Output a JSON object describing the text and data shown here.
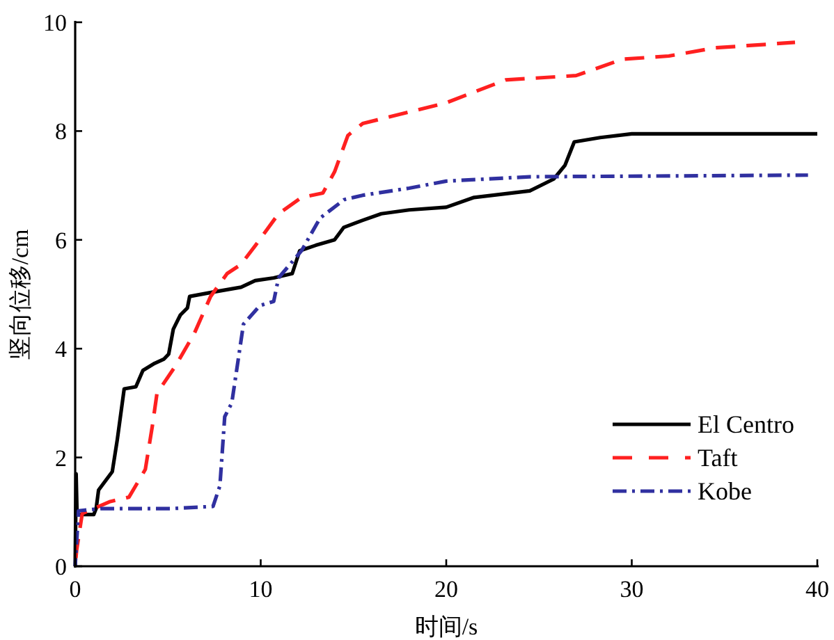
{
  "chart_data": {
    "type": "line",
    "xlabel": "时间/s",
    "ylabel": "竖向位移/cm",
    "xlim": [
      0,
      40
    ],
    "xticks": [
      0,
      10,
      20,
      30,
      40
    ],
    "ylim": [
      0,
      10
    ],
    "yticks": [
      0,
      2,
      4,
      6,
      8,
      10
    ],
    "grid": false,
    "legend": "bottom right",
    "marker": "none",
    "series": [
      {
        "name": "El Centro",
        "color": "#000000",
        "line_style": "solid",
        "x": [
          0,
          0.05,
          0.1,
          1,
          1.13,
          1.26,
          2.0,
          2.27,
          2.64,
          3.27,
          3.65,
          4.28,
          4.79,
          5.04,
          5.29,
          5.67,
          6.05,
          6.17,
          7.43,
          8.94,
          9.7,
          10.7,
          11.7,
          12.1,
          12.97,
          13.98,
          14.48,
          15.5,
          16.5,
          18,
          20,
          21.5,
          24.5,
          25.8,
          26.4,
          26.9,
          28.3,
          30,
          40
        ],
        "values": [
          0,
          1.7,
          0.95,
          0.95,
          1.06,
          1.4,
          1.74,
          2.33,
          3.26,
          3.3,
          3.6,
          3.73,
          3.81,
          3.9,
          4.36,
          4.62,
          4.75,
          4.96,
          5.04,
          5.13,
          5.25,
          5.3,
          5.38,
          5.8,
          5.9,
          6.0,
          6.23,
          6.36,
          6.48,
          6.55,
          6.6,
          6.78,
          6.9,
          7.12,
          7.37,
          7.8,
          7.88,
          7.95,
          7.95
        ]
      },
      {
        "name": "Taft",
        "color": "#ff2020",
        "line_style": "dashed",
        "x": [
          0,
          0.08,
          0.38,
          1.89,
          2.9,
          3.78,
          4.16,
          4.41,
          5.42,
          6.42,
          7.3,
          8.19,
          8.94,
          9.7,
          10.96,
          12.2,
          13.35,
          13.98,
          14.7,
          15.5,
          18,
          20,
          23.2,
          27,
          29.5,
          32,
          34.5,
          38.8
        ],
        "values": [
          0,
          0.3,
          0.97,
          1.19,
          1.27,
          1.78,
          2.58,
          3.18,
          3.69,
          4.28,
          4.96,
          5.38,
          5.55,
          5.89,
          6.48,
          6.78,
          6.86,
          7.25,
          7.92,
          8.14,
          8.35,
          8.52,
          8.94,
          9.02,
          9.32,
          9.38,
          9.53,
          9.63
        ]
      },
      {
        "name": "Kobe",
        "color": "#3030a0",
        "line_style": "dashdot",
        "x": [
          0,
          0.18,
          1.39,
          5.16,
          7.43,
          7.8,
          8.06,
          8.44,
          9.07,
          9.95,
          10.7,
          10.96,
          12.2,
          13.2,
          14.5,
          15.5,
          18,
          20,
          24.5,
          39.5
        ],
        "values": [
          0,
          1.02,
          1.06,
          1.06,
          1.1,
          1.48,
          2.75,
          3.0,
          4.45,
          4.79,
          4.87,
          5.3,
          5.8,
          6.4,
          6.74,
          6.82,
          6.95,
          7.08,
          7.16,
          7.19
        ]
      }
    ]
  }
}
